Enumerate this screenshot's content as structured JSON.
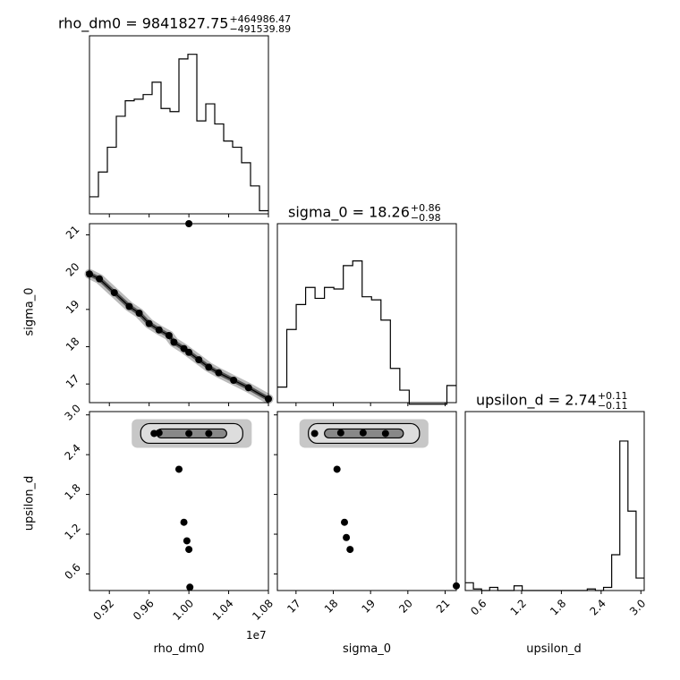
{
  "titles": {
    "rho_dm0": {
      "label": "rho_dm0 = 9841827.75",
      "up": "+464986.47",
      "down": "−491539.89"
    },
    "sigma_0": {
      "label": "sigma_0 = 18.26",
      "up": "+0.86",
      "down": "−0.98"
    },
    "upsilon_d": {
      "label": "upsilon_d = 2.74",
      "up": "+0.11",
      "down": "−0.11"
    }
  },
  "axis_labels": {
    "rho_dm0": "rho_dm0",
    "sigma_0": "sigma_0",
    "upsilon_d": "upsilon_d",
    "offset": "1e7"
  },
  "chart_data": {
    "type": "corner",
    "parameters": [
      "rho_dm0",
      "sigma_0",
      "upsilon_d"
    ],
    "ranges": {
      "rho_dm0": [
        9000000,
        10800000
      ],
      "sigma_0": [
        16.5,
        21.3
      ],
      "upsilon_d": [
        0.35,
        3.05
      ]
    },
    "ticks": {
      "rho_dm0": {
        "values": [
          0.92,
          0.96,
          1.0,
          1.04,
          1.08
        ],
        "labels": [
          "0.92",
          "0.96",
          "1.00",
          "1.04",
          "1.08"
        ],
        "scale": 10000000
      },
      "sigma_0": {
        "values": [
          17,
          18,
          19,
          20,
          21
        ],
        "labels": [
          "17",
          "18",
          "19",
          "20",
          "21"
        ]
      },
      "upsilon_d": {
        "values": [
          0.6,
          1.2,
          1.8,
          2.4,
          3.0
        ],
        "labels": [
          "0.6",
          "1.2",
          "1.8",
          "2.4",
          "3.0"
        ]
      }
    },
    "histograms": {
      "rho_dm0": [
        0.11,
        0.27,
        0.43,
        0.63,
        0.73,
        0.74,
        0.77,
        0.85,
        0.68,
        0.66,
        1.0,
        1.03,
        0.6,
        0.71,
        0.58,
        0.47,
        0.43,
        0.33,
        0.18,
        0.02
      ],
      "sigma_0": [
        0.1,
        0.47,
        0.63,
        0.74,
        0.67,
        0.74,
        0.73,
        0.88,
        0.91,
        0.68,
        0.66,
        0.53,
        0.22,
        0.08,
        -0.01,
        -0.01,
        -0.01,
        -0.01,
        0.11
      ],
      "upsilon_d": [
        0.05,
        0.01,
        0.0,
        0.02,
        0.0,
        0.0,
        0.03,
        0.0,
        0.0,
        0.0,
        0.0,
        0.0,
        0.0,
        0.0,
        0.0,
        0.01,
        0.0,
        0.02,
        0.23,
        0.96,
        0.51,
        0.08
      ]
    },
    "scatter_2d": {
      "sigma_0_vs_rho_dm0": [
        [
          9000000,
          19.95
        ],
        [
          9100000,
          19.82
        ],
        [
          9250000,
          19.45
        ],
        [
          9400000,
          19.08
        ],
        [
          9500000,
          18.9
        ],
        [
          9600000,
          18.62
        ],
        [
          9700000,
          18.45
        ],
        [
          9800000,
          18.3
        ],
        [
          9850000,
          18.12
        ],
        [
          9950000,
          17.95
        ],
        [
          10000000,
          17.85
        ],
        [
          10100000,
          17.65
        ],
        [
          10200000,
          17.45
        ],
        [
          10300000,
          17.3
        ],
        [
          10450000,
          17.1
        ],
        [
          10600000,
          16.9
        ],
        [
          10800000,
          16.6
        ],
        [
          10000000,
          21.3
        ]
      ],
      "upsilon_d_vs_rho_dm0": [
        [
          9650000,
          2.72
        ],
        [
          9700000,
          2.73
        ],
        [
          10000000,
          2.72
        ],
        [
          10200000,
          2.72
        ],
        [
          9900000,
          2.18
        ],
        [
          9950000,
          1.38
        ],
        [
          9980000,
          1.1
        ],
        [
          10000000,
          0.97
        ],
        [
          10010000,
          0.4
        ]
      ],
      "upsilon_d_vs_sigma_0": [
        [
          17.5,
          2.72
        ],
        [
          18.2,
          2.73
        ],
        [
          18.8,
          2.73
        ],
        [
          19.4,
          2.72
        ],
        [
          18.1,
          2.18
        ],
        [
          18.3,
          1.38
        ],
        [
          18.35,
          1.15
        ],
        [
          18.45,
          0.97
        ],
        [
          21.3,
          0.42
        ]
      ]
    }
  }
}
